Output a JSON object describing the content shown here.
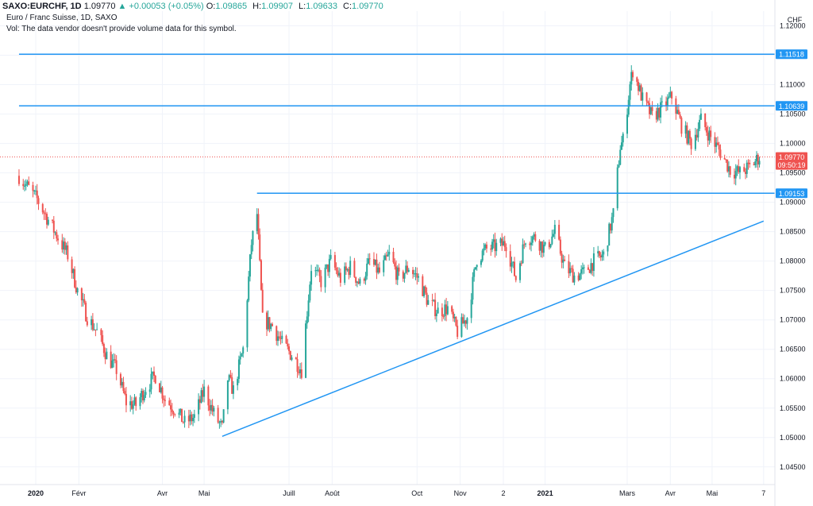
{
  "header": {
    "symbol": "SAXO:EURCHF, 1D",
    "last": "1.09770",
    "change": "+0.00053 (+0.05%)",
    "o_label": "O:",
    "o_val": "1.09865",
    "h_label": "H:",
    "h_val": "1.09907",
    "l_label": "L:",
    "l_val": "1.09633",
    "c_label": "C:",
    "c_val": "1.09770"
  },
  "legend": {
    "title": "Euro / Franc Suisse, 1D, SAXO",
    "volume_note": "Vol: The data vendor doesn't provide volume data for this symbol."
  },
  "currency": "CHF",
  "colors": {
    "up": "#26a69a",
    "down": "#ef5350",
    "line": "#2196f3",
    "price_tag": "#ef5350",
    "grid": "#f0f3fa"
  },
  "chart_data": {
    "type": "candlestick",
    "ylim": [
      1.042,
      1.1225
    ],
    "y_ticks": [
      "1.12000",
      "1.11500",
      "1.11000",
      "1.10500",
      "1.10000",
      "1.09500",
      "1.09000",
      "1.08500",
      "1.08000",
      "1.07500",
      "1.07000",
      "1.06500",
      "1.06000",
      "1.05500",
      "1.05000",
      "1.04500"
    ],
    "y_tick_values": [
      1.12,
      1.115,
      1.11,
      1.105,
      1.1,
      1.095,
      1.09,
      1.085,
      1.08,
      1.075,
      1.07,
      1.065,
      1.06,
      1.055,
      1.05,
      1.045
    ],
    "x_ticks": [
      "2020",
      "Févr",
      "Avr",
      "Mai",
      "Juill",
      "Août",
      "Oct",
      "Nov",
      "2",
      "2021",
      "Mars",
      "Avr",
      "Mai",
      "7"
    ],
    "x_tick_bold": [
      true,
      false,
      false,
      false,
      false,
      false,
      false,
      false,
      false,
      true,
      false,
      false,
      false,
      false
    ],
    "x_tick_dates": [
      "2020-01-01",
      "2020-02-01",
      "2020-04-01",
      "2020-05-01",
      "2020-07-01",
      "2020-08-01",
      "2020-10-01",
      "2020-11-01",
      "2020-12-02",
      "2021-01-01",
      "2021-03-01",
      "2021-04-01",
      "2021-05-01",
      "2021-06-07"
    ],
    "price_path": [
      [
        "2019-12-20",
        1.0945
      ],
      [
        "2020-01-02",
        1.0905
      ],
      [
        "2020-01-10",
        1.087
      ],
      [
        "2020-01-24",
        1.081
      ],
      [
        "2020-01-31",
        1.075
      ],
      [
        "2020-02-07",
        1.0705
      ],
      [
        "2020-02-14",
        1.068
      ],
      [
        "2020-02-21",
        1.064
      ],
      [
        "2020-02-28",
        1.0615
      ],
      [
        "2020-03-06",
        1.056
      ],
      [
        "2020-03-13",
        1.0555
      ],
      [
        "2020-03-20",
        1.0585
      ],
      [
        "2020-03-27",
        1.0605
      ],
      [
        "2020-04-03",
        1.0565
      ],
      [
        "2020-04-10",
        1.0548
      ],
      [
        "2020-04-17",
        1.0525
      ],
      [
        "2020-04-24",
        1.0535
      ],
      [
        "2020-05-01",
        1.058
      ],
      [
        "2020-05-08",
        1.054
      ],
      [
        "2020-05-14",
        1.0515
      ],
      [
        "2020-05-18",
        1.06
      ],
      [
        "2020-05-22",
        1.058
      ],
      [
        "2020-05-29",
        1.065
      ],
      [
        "2020-06-04",
        1.083
      ],
      [
        "2020-06-08",
        1.088
      ],
      [
        "2020-06-12",
        1.07
      ],
      [
        "2020-06-19",
        1.069
      ],
      [
        "2020-06-26",
        1.066
      ],
      [
        "2020-07-03",
        1.064
      ],
      [
        "2020-07-10",
        1.0615
      ],
      [
        "2020-07-17",
        1.079
      ],
      [
        "2020-07-24",
        1.0765
      ],
      [
        "2020-07-31",
        1.08
      ],
      [
        "2020-08-07",
        1.077
      ],
      [
        "2020-08-14",
        1.079
      ],
      [
        "2020-08-21",
        1.076
      ],
      [
        "2020-08-28",
        1.08
      ],
      [
        "2020-09-04",
        1.078
      ],
      [
        "2020-09-11",
        1.081
      ],
      [
        "2020-09-18",
        1.077
      ],
      [
        "2020-09-25",
        1.079
      ],
      [
        "2020-10-02",
        1.077
      ],
      [
        "2020-10-09",
        1.073
      ],
      [
        "2020-10-16",
        1.0715
      ],
      [
        "2020-10-23",
        1.072
      ],
      [
        "2020-10-30",
        1.068
      ],
      [
        "2020-11-06",
        1.0705
      ],
      [
        "2020-11-13",
        1.0805
      ],
      [
        "2020-11-20",
        1.082
      ],
      [
        "2020-11-27",
        1.0825
      ],
      [
        "2020-12-04",
        1.083
      ],
      [
        "2020-12-11",
        1.077
      ],
      [
        "2020-12-18",
        1.084
      ],
      [
        "2020-12-25",
        1.084
      ],
      [
        "2021-01-01",
        1.082
      ],
      [
        "2021-01-08",
        1.085
      ],
      [
        "2021-01-15",
        1.079
      ],
      [
        "2021-01-22",
        1.0775
      ],
      [
        "2021-01-29",
        1.078
      ],
      [
        "2021-02-05",
        1.08
      ],
      [
        "2021-02-12",
        1.081
      ],
      [
        "2021-02-19",
        1.088
      ],
      [
        "2021-02-24",
        1.0995
      ],
      [
        "2021-02-26",
        1.1005
      ],
      [
        "2021-03-03",
        1.11
      ],
      [
        "2021-03-05",
        1.1125
      ],
      [
        "2021-03-12",
        1.1075
      ],
      [
        "2021-03-19",
        1.1045
      ],
      [
        "2021-03-26",
        1.106
      ],
      [
        "2021-04-02",
        1.108
      ],
      [
        "2021-04-09",
        1.103
      ],
      [
        "2021-04-16",
        1.1
      ],
      [
        "2021-04-23",
        1.104
      ],
      [
        "2021-04-30",
        1.101
      ],
      [
        "2021-05-07",
        1.0985
      ],
      [
        "2021-05-14",
        1.0955
      ],
      [
        "2021-05-21",
        1.095
      ],
      [
        "2021-05-28",
        1.096
      ],
      [
        "2021-06-04",
        1.0977
      ]
    ],
    "hlines": [
      {
        "label": "1.11518",
        "value": 1.11518,
        "from": "2019-12-20",
        "to": "right"
      },
      {
        "label": "1.10639",
        "value": 1.10639,
        "from": "2019-12-20",
        "to": "right"
      },
      {
        "label": "1.09153",
        "value": 1.09153,
        "from": "2020-06-08",
        "to": "right"
      }
    ],
    "trendline": {
      "from": [
        "2020-05-14",
        1.0502
      ],
      "to": [
        "2021-06-07",
        1.0868
      ]
    },
    "last_price": {
      "label": "1.09770",
      "value": 1.0977,
      "countdown": "09:50:19"
    }
  }
}
